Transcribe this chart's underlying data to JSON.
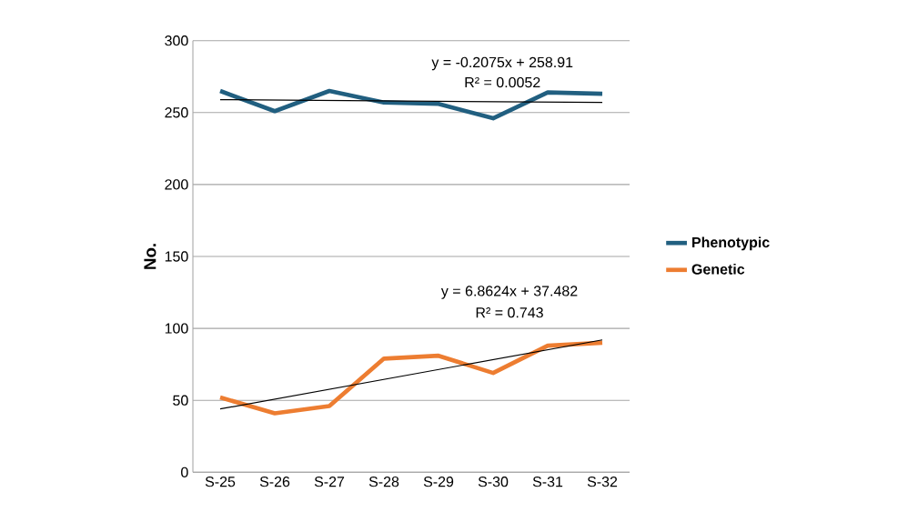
{
  "chart_data": {
    "type": "line",
    "ylabel": "No.",
    "categories": [
      "S-25",
      "S-26",
      "S-27",
      "S-28",
      "S-29",
      "S-30",
      "S-31",
      "S-32"
    ],
    "series": [
      {
        "name": "Phenotypic",
        "color": "#215f80",
        "values": [
          265,
          251,
          265,
          257,
          256,
          246,
          264,
          263
        ]
      },
      {
        "name": "Genetic",
        "color": "#ed7d31",
        "values": [
          52,
          41,
          46,
          79,
          81,
          69,
          88,
          90
        ]
      },
      {
        "type": "line",
        "color": "#000000",
        "x": [
          "S-25",
          "S-32"
        ],
        "values": [
          259,
          257
        ]
      },
      {
        "type": "line",
        "color": "#000000",
        "x": [
          "S-25",
          "S-32"
        ],
        "values": [
          44,
          92
        ]
      }
    ],
    "annotations": [
      "y = -0.2075x + 258.91",
      "R² = 0.0052",
      "y = 6.8624x + 37.482",
      "R² = 0.743"
    ],
    "ylim": [
      0,
      300
    ],
    "yticks": [
      0,
      50,
      100,
      150,
      200,
      250,
      300
    ],
    "grid": "y",
    "legend": "right",
    "line_style": "solid",
    "marker": "none"
  }
}
